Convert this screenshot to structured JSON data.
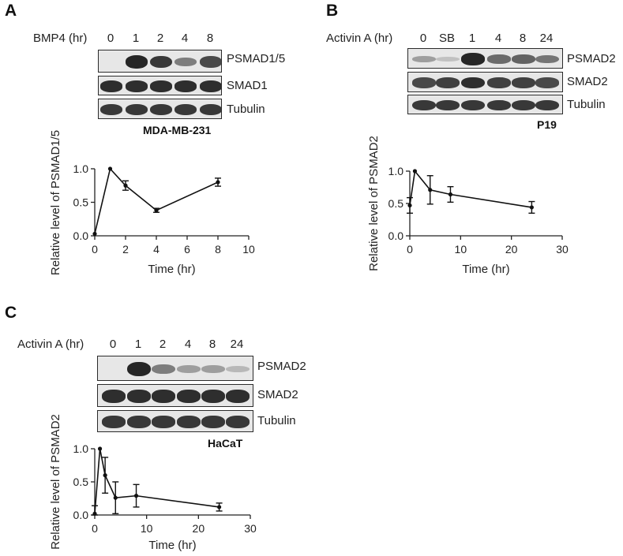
{
  "panels": {
    "A": {
      "letter": "A",
      "treatment_label": "BMP4 (hr)",
      "lanes": [
        "0",
        "1",
        "2",
        "4",
        "8"
      ],
      "rows": [
        "PSMAD1/5",
        "SMAD1",
        "Tubulin"
      ],
      "cell_line": "MDA-MB-231"
    },
    "B": {
      "letter": "B",
      "treatment_label": "Activin A (hr)",
      "lanes": [
        "0",
        "SB",
        "1",
        "4",
        "8",
        "24"
      ],
      "rows": [
        "PSMAD2",
        "SMAD2",
        "Tubulin"
      ],
      "cell_line": "P19"
    },
    "C": {
      "letter": "C",
      "treatment_label": "Activin A (hr)",
      "lanes": [
        "0",
        "1",
        "2",
        "4",
        "8",
        "24"
      ],
      "rows": [
        "PSMAD2",
        "SMAD2",
        "Tubulin"
      ],
      "cell_line": "HaCaT"
    }
  },
  "band_intensity": {
    "A": [
      [
        0.0,
        0.95,
        0.85,
        0.45,
        0.75
      ],
      [
        0.9,
        0.9,
        0.9,
        0.9,
        0.9
      ],
      [
        0.85,
        0.85,
        0.85,
        0.85,
        0.85
      ]
    ],
    "B": [
      [
        0.25,
        0.05,
        0.95,
        0.55,
        0.6,
        0.5
      ],
      [
        0.75,
        0.8,
        0.9,
        0.8,
        0.8,
        0.75
      ],
      [
        0.85,
        0.85,
        0.85,
        0.85,
        0.85,
        0.85
      ]
    ],
    "C": [
      [
        0.0,
        0.95,
        0.45,
        0.25,
        0.25,
        0.1
      ],
      [
        0.9,
        0.9,
        0.9,
        0.9,
        0.9,
        0.9
      ],
      [
        0.85,
        0.85,
        0.85,
        0.85,
        0.85,
        0.85
      ]
    ]
  },
  "chart_data": [
    {
      "type": "line",
      "panel": "A",
      "xlabel": "Time (hr)",
      "ylabel": "Relative level of PSMAD1/5",
      "xlim": [
        0,
        10
      ],
      "ylim": [
        0,
        1.0
      ],
      "xticks": [
        "0",
        "2",
        "4",
        "6",
        "8",
        "10"
      ],
      "yticks": [
        "0.0",
        "0.5",
        "1.0"
      ],
      "x": [
        0,
        1,
        2,
        4,
        8
      ],
      "y": [
        0.03,
        1.0,
        0.75,
        0.38,
        0.8
      ],
      "err": [
        0.0,
        0.0,
        0.07,
        0.03,
        0.06
      ]
    },
    {
      "type": "line",
      "panel": "B",
      "xlabel": "Time (hr)",
      "ylabel": "Relative level of PSMAD2",
      "xlim": [
        0,
        30
      ],
      "ylim": [
        0,
        1.0
      ],
      "xticks": [
        "0",
        "10",
        "20",
        "30"
      ],
      "yticks": [
        "0.0",
        "0.5",
        "1.0"
      ],
      "x": [
        0,
        1,
        4,
        8,
        24
      ],
      "y": [
        0.47,
        1.0,
        0.71,
        0.64,
        0.44
      ],
      "err": [
        0.12,
        0.0,
        0.22,
        0.12,
        0.09
      ]
    },
    {
      "type": "line",
      "panel": "C",
      "xlabel": "Time (hr)",
      "ylabel": "Relative level of PSMAD2",
      "xlim": [
        0,
        30
      ],
      "ylim": [
        0,
        1.0
      ],
      "xticks": [
        "0",
        "10",
        "20",
        "30"
      ],
      "yticks": [
        "0.0",
        "0.5",
        "1.0"
      ],
      "x": [
        0,
        1,
        2,
        4,
        8,
        24
      ],
      "y": [
        0.02,
        1.0,
        0.6,
        0.26,
        0.29,
        0.12
      ],
      "err": [
        0.12,
        0.0,
        0.27,
        0.24,
        0.17,
        0.06
      ]
    }
  ]
}
